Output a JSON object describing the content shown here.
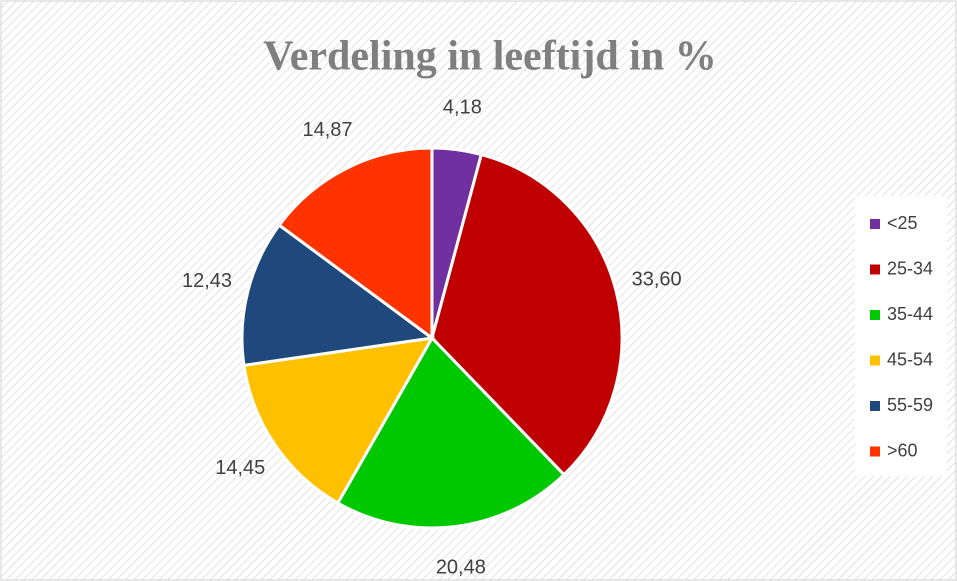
{
  "chart_data": {
    "type": "pie",
    "title": "Verdeling in leeftijd in %",
    "categories": [
      "<25",
      "25-34",
      "35-44",
      "45-54",
      "55-59",
      ">60"
    ],
    "values": [
      4.18,
      33.6,
      20.48,
      14.45,
      12.43,
      14.87
    ],
    "value_labels": [
      "4,18",
      "33,60",
      "20,48",
      "14,45",
      "12,43",
      "14,87"
    ],
    "colors": [
      "#7030a0",
      "#c00000",
      "#00c800",
      "#ffc000",
      "#1f497d",
      "#ff3300"
    ],
    "legend": "right"
  }
}
